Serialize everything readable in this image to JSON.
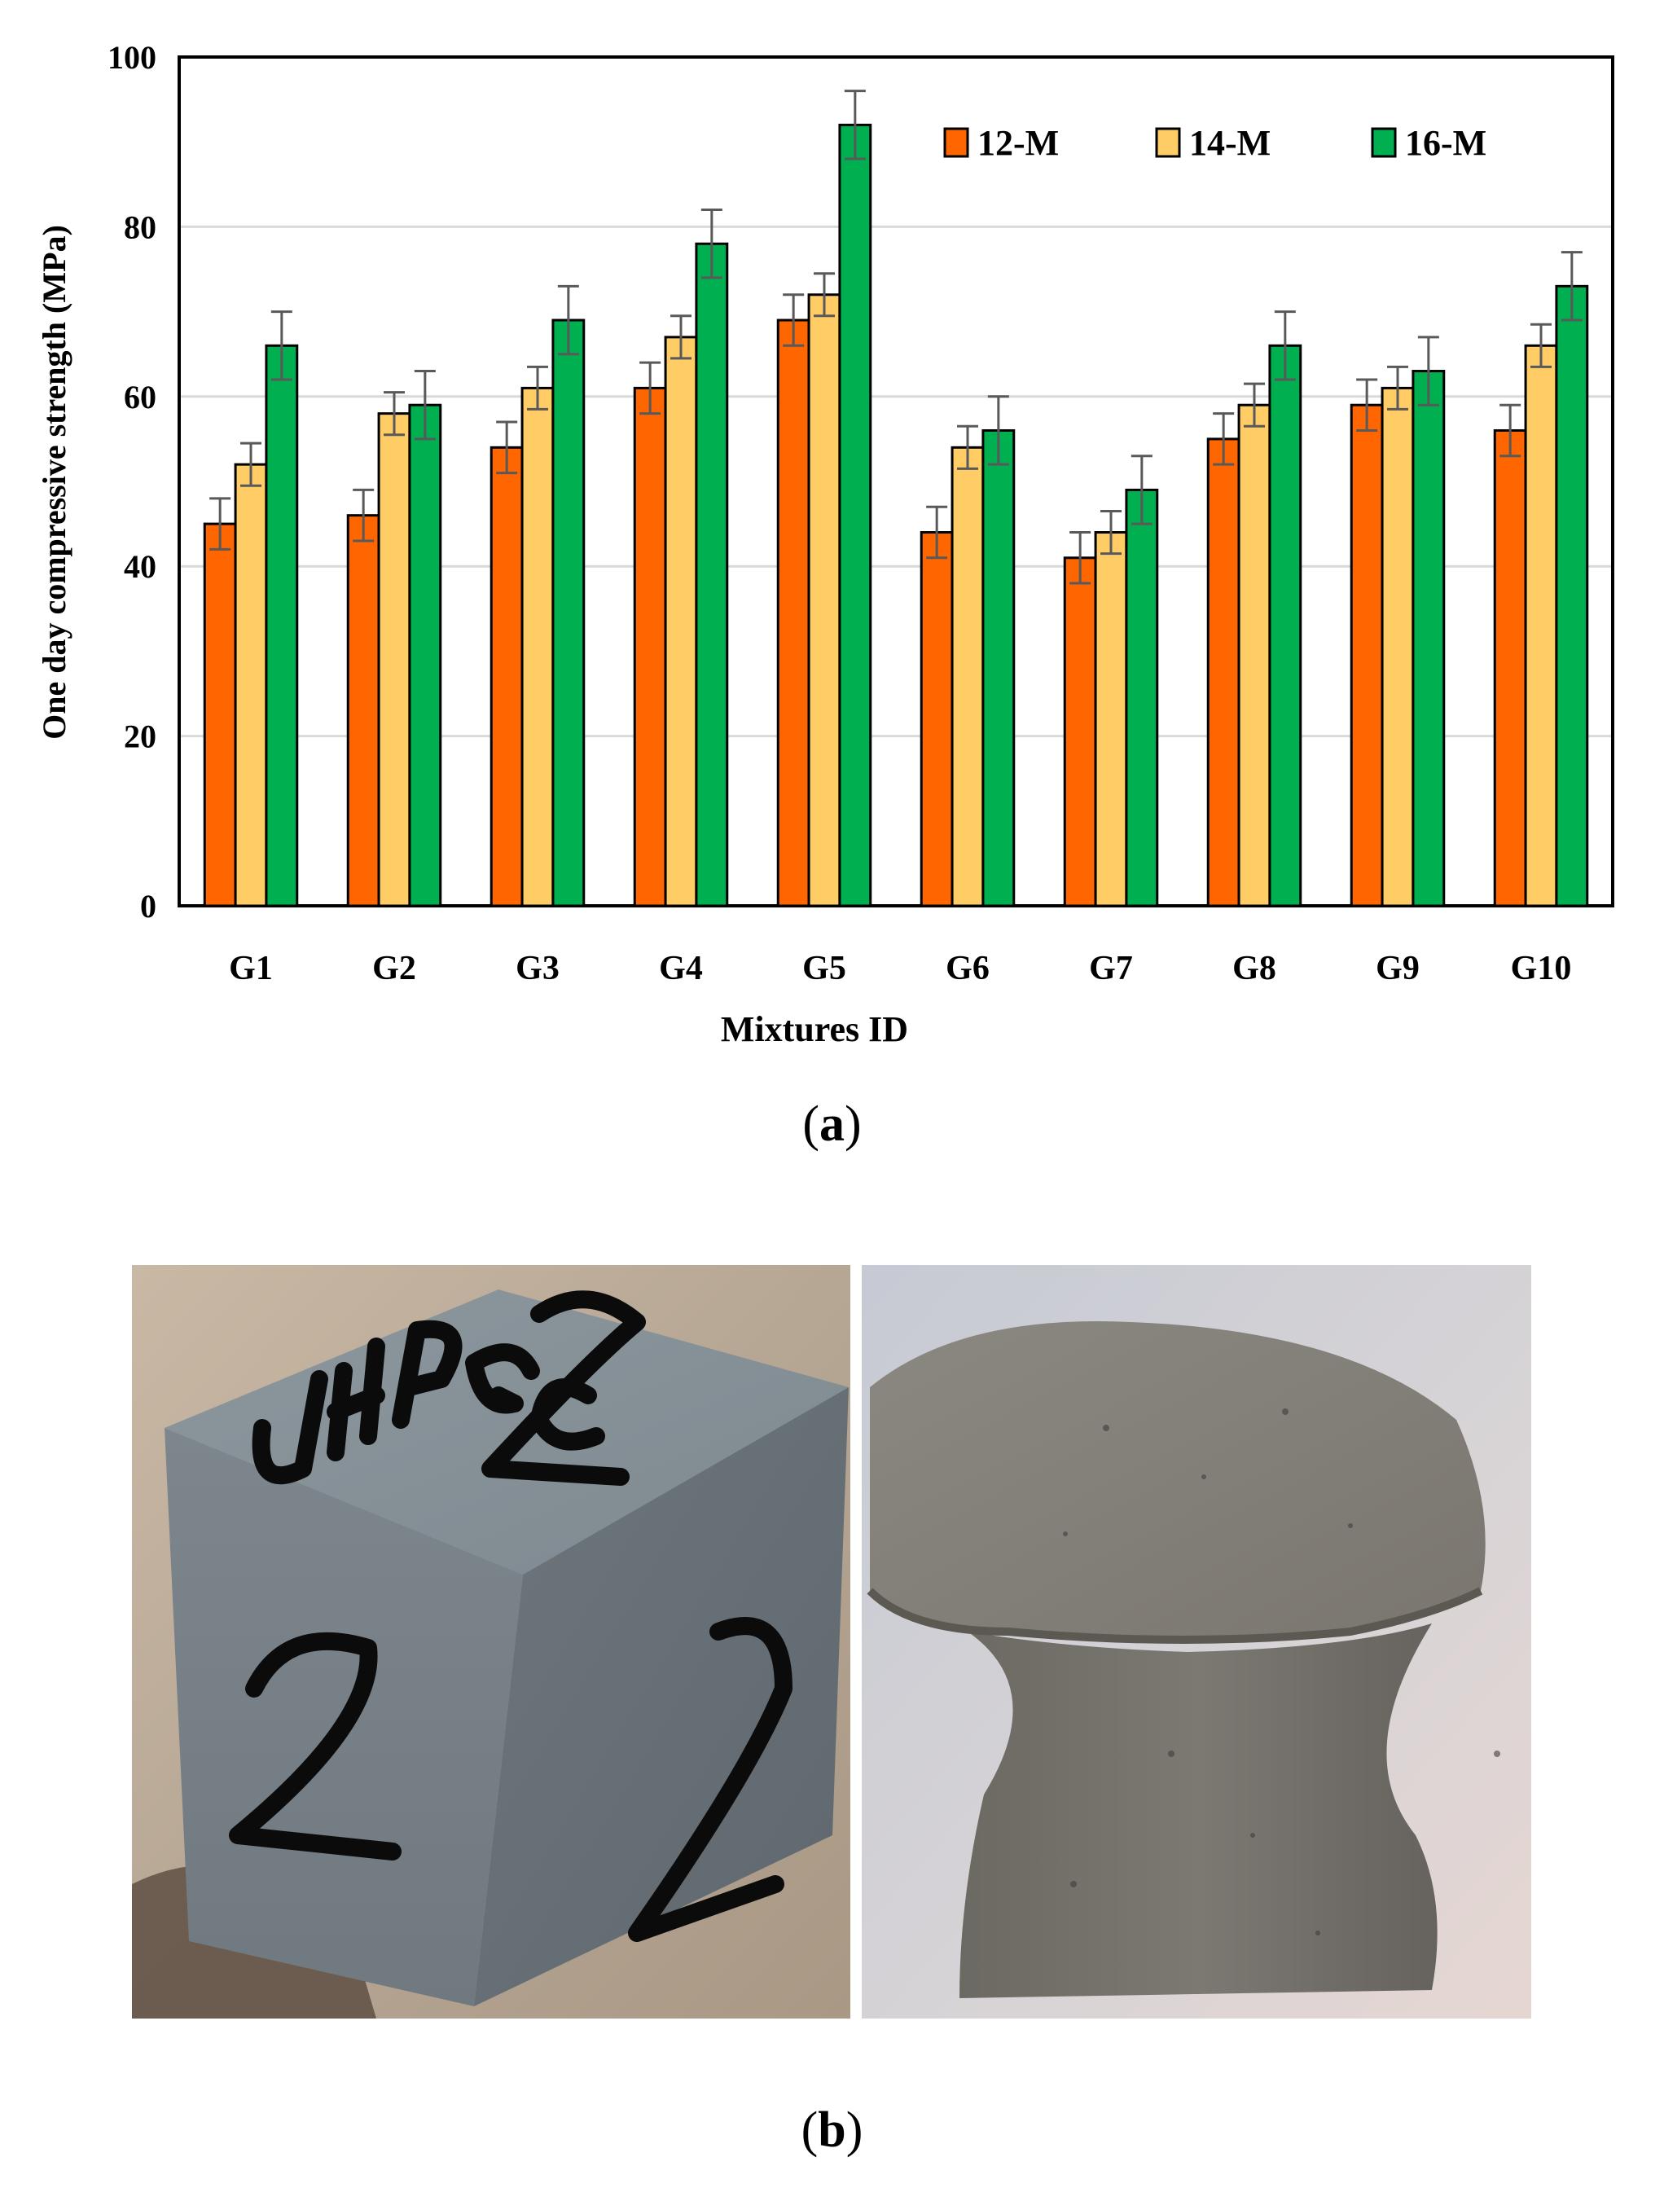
{
  "figure": {
    "caption_a": "a",
    "caption_b": "b"
  },
  "chart_data": {
    "type": "bar",
    "title": "",
    "xlabel": "Mixtures ID",
    "ylabel": "One day compressive strength (MPa)",
    "ylim": [
      0,
      100
    ],
    "yticks": [
      0,
      20,
      40,
      60,
      80,
      100
    ],
    "grid": true,
    "legend_position": "top-right",
    "categories": [
      "G1",
      "G2",
      "G3",
      "G4",
      "G5",
      "G6",
      "G7",
      "G8",
      "G9",
      "G10"
    ],
    "series": [
      {
        "name": "12-M",
        "color": "#FF6600",
        "values": [
          45,
          46,
          54,
          61,
          69,
          44,
          41,
          55,
          59,
          56
        ],
        "errors": [
          3,
          3,
          3,
          3,
          3,
          3,
          3,
          3,
          3,
          3
        ]
      },
      {
        "name": "14-M",
        "color": "#FFCC66",
        "values": [
          52,
          58,
          61,
          67,
          72,
          54,
          44,
          59,
          61,
          66
        ],
        "errors": [
          2.5,
          2.5,
          2.5,
          2.5,
          2.5,
          2.5,
          2.5,
          2.5,
          2.5,
          2.5
        ]
      },
      {
        "name": "16-M",
        "color": "#00B050",
        "values": [
          66,
          59,
          69,
          78,
          92,
          56,
          49,
          66,
          63,
          73
        ],
        "errors": [
          4,
          4,
          4,
          4,
          4,
          4,
          4,
          4,
          4,
          4
        ]
      }
    ]
  },
  "photos": {
    "left_marking_top": "UHPGC",
    "left_marking_number": "2"
  }
}
